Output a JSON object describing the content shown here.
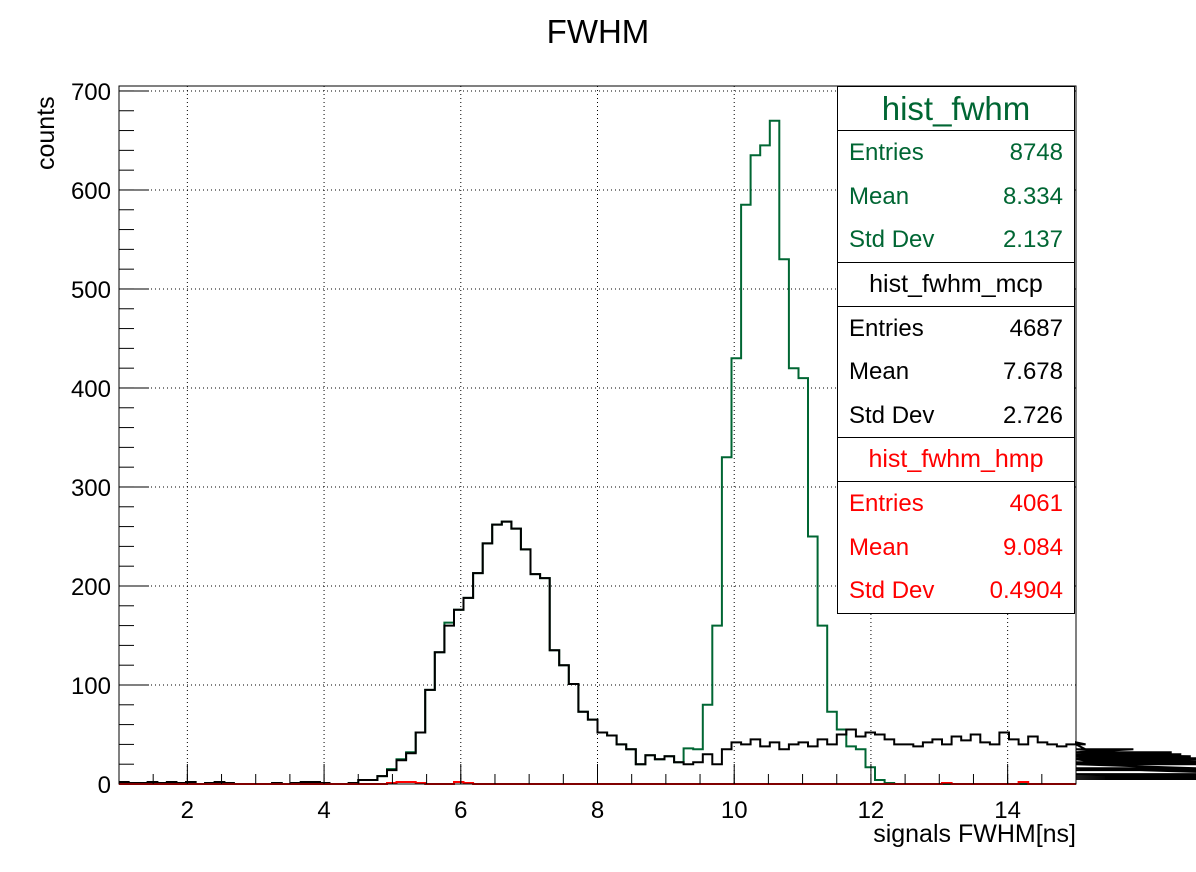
{
  "colors": {
    "hist_fwhm": "#006633",
    "hist_fwhm_mcp": "#000000",
    "hist_fwhm_hmp": "#ff0000"
  },
  "stats": [
    {
      "name": "hist_fwhm",
      "color": "#006633",
      "entries_label": "Entries",
      "entries": "8748",
      "mean_label": "Mean",
      "mean": "8.334",
      "std_label": "Std Dev",
      "std": "2.137"
    },
    {
      "name": "hist_fwhm_mcp",
      "color": "#000000",
      "entries_label": "Entries",
      "entries": "4687",
      "mean_label": "Mean",
      "mean": "7.678",
      "std_label": "Std Dev",
      "std": "2.726"
    },
    {
      "name": "hist_fwhm_hmp",
      "color": "#ff0000",
      "entries_label": "Entries",
      "entries": "4061",
      "mean_label": "Mean",
      "mean": "9.084",
      "std_label": "Std Dev",
      "std": "0.4904"
    }
  ],
  "chart_data": {
    "type": "histogram",
    "title": "FWHM",
    "xlabel": "signals FWHM[ns]",
    "ylabel": "counts",
    "xlim": [
      1,
      15
    ],
    "ylim": [
      0,
      705
    ],
    "bin_width": 0.14,
    "grid": true,
    "legend_placement": "top-right",
    "x_ticks": [
      "2",
      "4",
      "6",
      "8",
      "10",
      "12",
      "14"
    ],
    "y_ticks": [
      "0",
      "100",
      "200",
      "300",
      "400",
      "500",
      "600",
      "700"
    ],
    "series": [
      {
        "name": "hist_fwhm",
        "color": "#006633",
        "values": [
          2,
          1,
          1,
          2,
          1,
          2,
          1,
          2,
          0,
          1,
          2,
          1,
          0,
          0,
          0,
          0,
          1,
          0,
          1,
          2,
          2,
          1,
          0,
          0,
          1,
          4,
          4,
          8,
          15,
          25,
          32,
          52,
          95,
          133,
          163,
          176,
          188,
          213,
          243,
          262,
          265,
          258,
          237,
          212,
          208,
          135,
          120,
          101,
          73,
          65,
          52,
          49,
          40,
          35,
          20,
          29,
          25,
          28,
          22,
          36,
          35,
          80,
          160,
          330,
          430,
          585,
          635,
          645,
          670,
          530,
          420,
          410,
          250,
          160,
          73,
          55,
          38,
          35,
          17,
          4,
          1,
          0,
          0,
          0,
          0,
          0,
          0,
          0,
          0,
          0,
          0,
          0,
          0,
          0,
          0,
          0,
          0,
          0,
          0,
          0
        ]
      },
      {
        "name": "hist_fwhm_mcp",
        "color": "#000000",
        "values": [
          2,
          1,
          1,
          2,
          1,
          2,
          1,
          2,
          0,
          1,
          2,
          1,
          0,
          0,
          0,
          0,
          1,
          0,
          1,
          2,
          2,
          1,
          0,
          0,
          1,
          4,
          4,
          8,
          14,
          24,
          31,
          52,
          95,
          133,
          160,
          176,
          188,
          213,
          243,
          262,
          265,
          258,
          237,
          212,
          208,
          135,
          120,
          101,
          73,
          65,
          52,
          49,
          40,
          35,
          20,
          29,
          25,
          28,
          22,
          20,
          22,
          30,
          20,
          35,
          42,
          40,
          45,
          38,
          42,
          35,
          40,
          42,
          38,
          45,
          40,
          50,
          55,
          48,
          52,
          50,
          45,
          40,
          40,
          38,
          42,
          45,
          40,
          48,
          44,
          50,
          42,
          40,
          52,
          45,
          40,
          48,
          42,
          40,
          38,
          40,
          42,
          40,
          30,
          25,
          20,
          32,
          35,
          30,
          28,
          25,
          32,
          30,
          28,
          25,
          22,
          25,
          26,
          20,
          14,
          16,
          10,
          9,
          8,
          7,
          6,
          5
        ]
      },
      {
        "name": "hist_fwhm_hmp",
        "color": "#ff0000",
        "values": [
          0,
          0,
          0,
          0,
          0,
          0,
          0,
          0,
          0,
          0,
          0,
          0,
          0,
          0,
          0,
          0,
          0,
          0,
          0,
          0,
          0,
          0,
          0,
          0,
          0,
          0,
          0,
          0,
          1,
          2,
          2,
          1,
          0,
          0,
          0,
          2,
          1,
          0,
          0,
          0,
          0,
          0,
          0,
          0,
          0,
          0,
          0,
          0,
          0,
          0,
          0,
          0,
          0,
          0,
          0,
          0,
          0,
          0,
          0,
          0,
          0,
          0,
          0,
          0,
          0,
          0,
          0,
          0,
          0,
          0,
          0,
          0,
          0,
          0,
          0,
          0,
          0,
          0,
          0,
          0,
          0,
          0,
          0,
          0,
          0,
          0,
          1,
          0,
          0,
          0,
          0,
          0,
          0,
          0,
          2,
          0,
          0,
          0,
          0,
          0
        ]
      }
    ]
  }
}
